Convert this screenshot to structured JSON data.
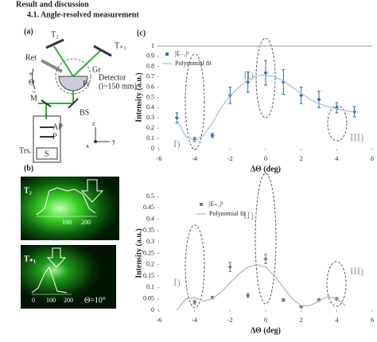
{
  "header": {
    "section": "Result and discussion",
    "subsection": "4.1.   Angle-resolved measurement"
  },
  "panel_a": {
    "label": "(a)",
    "t2": "T₂",
    "t1": "T₊₁",
    "ret": "Ret",
    "theta": "Θ",
    "plus": "+",
    "minus": "−",
    "gr": "Gr",
    "pr": "Pr",
    "detector": "Detector",
    "distance": "(l~150 mm)",
    "m": "M",
    "bs": "BS",
    "ap": "AP",
    "p": "P",
    "trs": "Trs.",
    "s": "S",
    "z": "z",
    "x": "x",
    "y": "y"
  },
  "panel_b": {
    "label": "(b)",
    "t2": "T₂",
    "t1": "T₊₁",
    "angle": "Θ=10°",
    "ticks_top": [
      "100",
      "200"
    ],
    "ticks_bottom": [
      "0",
      "100",
      "200"
    ]
  },
  "panel_c": {
    "label": "(c)"
  },
  "chart_data": [
    {
      "type": "scatter",
      "xlabel": "ΔΘ (deg)",
      "ylabel": "Intensity (a.u.)",
      "xlim": [
        -6,
        6
      ],
      "ylim": [
        0,
        1
      ],
      "xticks": [
        -6,
        -4,
        -2,
        0,
        2,
        4,
        6
      ],
      "yticks": [
        0,
        0.1,
        0.2,
        0.3,
        0.4,
        0.5,
        0.6,
        0.7,
        0.8,
        0.9,
        1
      ],
      "legend": "upper left",
      "grid": false,
      "annotations": [
        "I)",
        "II)",
        "III)"
      ],
      "series": [
        {
          "name": "|E₋₁|²",
          "type": "points",
          "color": "#2f6cb5",
          "x": [
            -5,
            -4,
            -3,
            -2,
            -1,
            0,
            1,
            2,
            3,
            4,
            5
          ],
          "values": [
            0.3,
            0.09,
            0.13,
            0.52,
            0.65,
            0.74,
            0.65,
            0.52,
            0.48,
            0.4,
            0.36
          ],
          "errors": [
            0.05,
            0.02,
            0.02,
            0.08,
            0.1,
            0.12,
            0.12,
            0.08,
            0.08,
            0.05,
            0.05
          ]
        },
        {
          "name": "Polynomial fit",
          "type": "line",
          "color": "#9cc0de",
          "x": [
            -5,
            -4.5,
            -4,
            -3.5,
            -3,
            -2.5,
            -2,
            -1.5,
            -1,
            -0.5,
            0,
            0.5,
            1,
            1.5,
            2,
            2.5,
            3,
            3.5,
            4,
            4.5,
            5
          ],
          "values": [
            0.28,
            0.12,
            0.08,
            0.13,
            0.25,
            0.4,
            0.52,
            0.6,
            0.67,
            0.71,
            0.72,
            0.7,
            0.66,
            0.6,
            0.54,
            0.48,
            0.44,
            0.41,
            0.39,
            0.37,
            0.36
          ]
        }
      ]
    },
    {
      "type": "scatter",
      "xlabel": "ΔΘ (deg)",
      "ylabel": "Intensity (a.u.)",
      "xlim": [
        -6,
        6
      ],
      "ylim": [
        0,
        0.5
      ],
      "xticks": [
        -6,
        -4,
        -2,
        0,
        2,
        4,
        6
      ],
      "yticks": [
        0,
        0.05,
        0.1,
        0.15,
        0.2,
        0.25,
        0.3,
        0.35,
        0.4,
        0.45,
        0.5
      ],
      "legend": "upper center",
      "grid": false,
      "annotations": [
        "I)",
        "II)",
        "III)"
      ],
      "series": [
        {
          "name": "|E₊₁|²",
          "type": "points",
          "color": "#777777",
          "x": [
            -4,
            -3,
            -2,
            -1,
            0,
            1,
            2,
            3,
            4
          ],
          "values": [
            0.035,
            0.055,
            0.19,
            0.065,
            0.225,
            0.045,
            0.015,
            0.045,
            0.05
          ],
          "errors": [
            0.008,
            0.006,
            0.02,
            0.008,
            0.02,
            0.006,
            0.004,
            0.006,
            0.006
          ]
        },
        {
          "name": "Polynomial fit",
          "type": "line",
          "color": "#b0b0b0",
          "x": [
            -5,
            -4.5,
            -4,
            -3.5,
            -3,
            -2.5,
            -2,
            -1.5,
            -1,
            -0.5,
            0,
            0.5,
            1,
            1.5,
            2,
            2.5,
            3,
            3.5,
            4,
            4.5
          ],
          "values": [
            0,
            0.05,
            0.055,
            0.04,
            0.05,
            0.08,
            0.12,
            0.16,
            0.19,
            0.2,
            0.19,
            0.15,
            0.1,
            0.05,
            0.02,
            0.02,
            0.04,
            0.06,
            0.05,
            0.02
          ]
        }
      ]
    }
  ]
}
